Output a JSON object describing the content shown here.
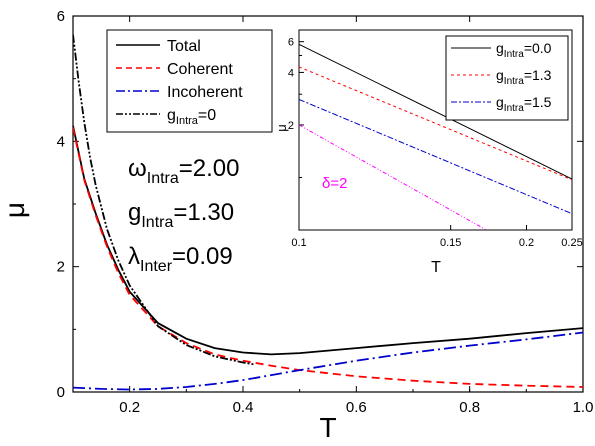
{
  "chart_data": [
    {
      "type": "line",
      "xlabel": "T",
      "ylabel": "μ",
      "xlim": [
        0.1,
        1.0
      ],
      "ylim": [
        0,
        6
      ],
      "xticks": [
        "0.2",
        "0.4",
        "0.6",
        "0.8",
        "1.0"
      ],
      "yticks": [
        "0",
        "2",
        "4",
        "6"
      ],
      "annotations": [
        {
          "greek": "ω",
          "sub": "Intra",
          "value": "=2.00"
        },
        {
          "greek": "g",
          "sub": "Intra",
          "value": "=1.30"
        },
        {
          "greek": "λ",
          "sub": "Inter",
          "value": "=0.09"
        }
      ],
      "legend_position": "top-left",
      "series": [
        {
          "name": "Total",
          "color": "#000000",
          "style": "solid",
          "x": [
            0.1,
            0.12,
            0.14,
            0.16,
            0.18,
            0.2,
            0.25,
            0.3,
            0.35,
            0.4,
            0.45,
            0.5,
            0.6,
            0.7,
            0.8,
            0.9,
            1.0
          ],
          "y": [
            4.25,
            3.4,
            2.85,
            2.35,
            1.95,
            1.6,
            1.1,
            0.85,
            0.7,
            0.63,
            0.6,
            0.62,
            0.7,
            0.78,
            0.85,
            0.94,
            1.02
          ]
        },
        {
          "name": "Coherent",
          "color": "#ff0000",
          "style": "dash",
          "x": [
            0.1,
            0.12,
            0.14,
            0.16,
            0.18,
            0.2,
            0.25,
            0.3,
            0.35,
            0.4,
            0.45,
            0.5,
            0.6,
            0.7,
            0.8,
            0.9,
            1.0
          ],
          "y": [
            4.22,
            3.38,
            2.82,
            2.32,
            1.9,
            1.55,
            1.05,
            0.78,
            0.6,
            0.5,
            0.42,
            0.35,
            0.25,
            0.18,
            0.13,
            0.1,
            0.08
          ]
        },
        {
          "name": "Incoherent",
          "color": "#0000cc",
          "style": "dashdot",
          "x": [
            0.1,
            0.15,
            0.2,
            0.25,
            0.3,
            0.35,
            0.4,
            0.45,
            0.5,
            0.6,
            0.7,
            0.8,
            0.9,
            1.0
          ],
          "y": [
            0.07,
            0.05,
            0.04,
            0.05,
            0.08,
            0.13,
            0.19,
            0.27,
            0.35,
            0.5,
            0.63,
            0.74,
            0.84,
            0.95
          ]
        },
        {
          "name": "=0",
          "sub": "Intra",
          "prefix": "g",
          "color": "#000000",
          "style": "dashdotdot",
          "x": [
            0.1,
            0.11,
            0.12,
            0.13,
            0.14,
            0.16,
            0.18,
            0.2,
            0.25,
            0.3,
            0.35,
            0.4,
            0.42
          ],
          "y": [
            5.7,
            4.95,
            4.3,
            3.75,
            3.3,
            2.6,
            2.1,
            1.7,
            1.05,
            0.75,
            0.57,
            0.47,
            0.44
          ]
        }
      ]
    },
    {
      "type": "line",
      "xlabel": "T",
      "ylabel": "μ",
      "xscale": "reciprocal",
      "yscale": "log",
      "xlim": [
        0.1,
        0.25
      ],
      "ylim": [
        0.5,
        7
      ],
      "xticks": [
        "0.1",
        "0.15",
        "0.2",
        "0.25"
      ],
      "yticks": [
        "2",
        "4",
        "6"
      ],
      "annotations": [
        {
          "text": "δ=2",
          "color": "#ff00ff"
        }
      ],
      "legend_position": "top-right",
      "series": [
        {
          "name": "=0.0",
          "sub": "Intra",
          "prefix": "g",
          "color": "#000000",
          "style": "solid",
          "x": [
            0.1,
            0.25
          ],
          "y": [
            5.8,
            0.98
          ]
        },
        {
          "name": "=1.3",
          "sub": "Intra",
          "prefix": "g",
          "color": "#ff0000",
          "style": "dash",
          "x": [
            0.1,
            0.25
          ],
          "y": [
            4.3,
            0.97
          ]
        },
        {
          "name": "=1.5",
          "sub": "Intra",
          "prefix": "g",
          "color": "#0000cc",
          "style": "dashdot",
          "x": [
            0.1,
            0.25
          ],
          "y": [
            2.8,
            0.62
          ]
        },
        {
          "name": "",
          "color": "#ff00ff",
          "style": "dashdotdot",
          "x": [
            0.1,
            0.17
          ],
          "y": [
            2.0,
            0.5
          ]
        }
      ]
    }
  ]
}
